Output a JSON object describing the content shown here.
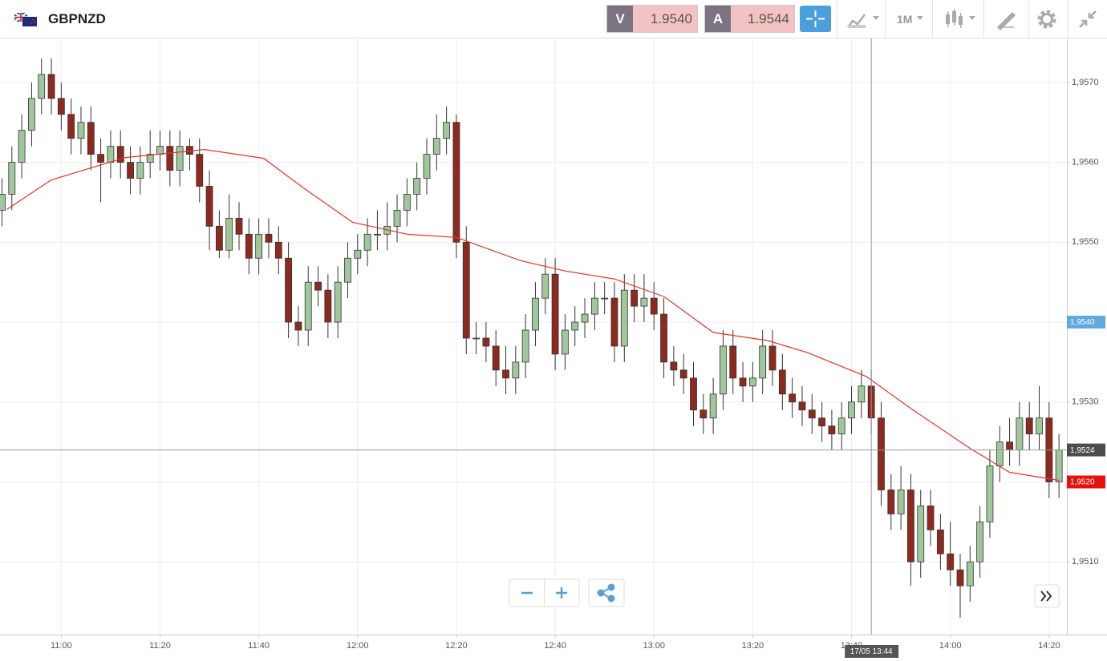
{
  "header": {
    "symbol": "GBPNZD",
    "bid_label": "V",
    "bid": "1.9540",
    "ask_label": "A",
    "ask": "1.9544",
    "timeframe": "1M"
  },
  "chart_data": {
    "type": "candlestick",
    "x": [
      648,
      650,
      652,
      654,
      656,
      658,
      660,
      662,
      664,
      666,
      668,
      670,
      672,
      674,
      676,
      678,
      680,
      682,
      684,
      686,
      688,
      690,
      692,
      694,
      696,
      698,
      700,
      702,
      704,
      706,
      708,
      710,
      712,
      714,
      716,
      718,
      720,
      722,
      724,
      726,
      728,
      730,
      732,
      734,
      736,
      738,
      740,
      742,
      744,
      746,
      748,
      750,
      752,
      754,
      756,
      758,
      760,
      762,
      764,
      766,
      768,
      770,
      772,
      774,
      776,
      778,
      780,
      782,
      784,
      786,
      788,
      790,
      792,
      794,
      796,
      798,
      800,
      802,
      804,
      806,
      808,
      810,
      812,
      814,
      816,
      818,
      820,
      822,
      824,
      826,
      828,
      830,
      832,
      834,
      836,
      838,
      840,
      842,
      844,
      846,
      848,
      850,
      852,
      854,
      856,
      858,
      860,
      862
    ],
    "open": [
      1.9554,
      1.9556,
      1.956,
      1.9564,
      1.9568,
      1.9571,
      1.9568,
      1.9566,
      1.9563,
      1.9565,
      1.9561,
      1.956,
      1.9562,
      1.956,
      1.9558,
      1.956,
      1.9561,
      1.9562,
      1.9559,
      1.9562,
      1.9561,
      1.9557,
      1.9552,
      1.9549,
      1.9553,
      1.9551,
      1.9548,
      1.9551,
      1.955,
      1.9548,
      1.954,
      1.9539,
      1.9545,
      1.9544,
      1.954,
      1.9545,
      1.9548,
      1.9549,
      1.9551,
      1.9551,
      1.9552,
      1.9554,
      1.9556,
      1.9558,
      1.9561,
      1.9563,
      1.9565,
      1.955,
      1.9538,
      1.9538,
      1.9537,
      1.9534,
      1.9533,
      1.9535,
      1.9539,
      1.9543,
      1.9546,
      1.9536,
      1.9539,
      1.954,
      1.9541,
      1.9543,
      1.9543,
      1.9537,
      1.9544,
      1.9542,
      1.9543,
      1.9541,
      1.9535,
      1.9534,
      1.9533,
      1.9529,
      1.9528,
      1.9531,
      1.9537,
      1.9533,
      1.9532,
      1.9533,
      1.9537,
      1.9534,
      1.9531,
      1.953,
      1.9529,
      1.9528,
      1.9527,
      1.9526,
      1.9528,
      1.953,
      1.9532,
      1.9528,
      1.9519,
      1.9516,
      1.9519,
      1.951,
      1.9517,
      1.9514,
      1.9511,
      1.9509,
      1.9507,
      1.951,
      1.9515,
      1.9522,
      1.9525,
      1.9524,
      1.9528,
      1.9526,
      1.9528,
      1.952
    ],
    "high": [
      1.9558,
      1.9562,
      1.9566,
      1.957,
      1.9573,
      1.9573,
      1.957,
      1.9568,
      1.9567,
      1.9567,
      1.9563,
      1.9564,
      1.9564,
      1.9562,
      1.9562,
      1.9564,
      1.9564,
      1.9564,
      1.9564,
      1.9563,
      1.9563,
      1.9559,
      1.9554,
      1.9556,
      1.9555,
      1.9553,
      1.9553,
      1.9553,
      1.9552,
      1.955,
      1.9542,
      1.9547,
      1.9547,
      1.9546,
      1.9547,
      1.955,
      1.9551,
      1.9553,
      1.9554,
      1.9555,
      1.9556,
      1.9558,
      1.956,
      1.9563,
      1.9566,
      1.9567,
      1.9566,
      1.9552,
      1.954,
      1.954,
      1.9539,
      1.9537,
      1.9537,
      1.9541,
      1.9545,
      1.9548,
      1.9548,
      1.9541,
      1.9542,
      1.9543,
      1.9545,
      1.9545,
      1.9545,
      1.9546,
      1.9546,
      1.9546,
      1.9545,
      1.9543,
      1.9537,
      1.9536,
      1.9535,
      1.9531,
      1.9533,
      1.9539,
      1.9539,
      1.9535,
      1.9535,
      1.9539,
      1.9539,
      1.9536,
      1.9533,
      1.9532,
      1.9531,
      1.953,
      1.9529,
      1.953,
      1.9532,
      1.9534,
      1.9534,
      1.953,
      1.9521,
      1.9522,
      1.9521,
      1.9519,
      1.9519,
      1.9516,
      1.9515,
      1.9511,
      1.9512,
      1.9517,
      1.9524,
      1.9527,
      1.9528,
      1.953,
      1.953,
      1.9532,
      1.953,
      1.9526
    ],
    "low": [
      1.9552,
      1.9554,
      1.9558,
      1.9562,
      1.9566,
      1.9566,
      1.9564,
      1.9561,
      1.9561,
      1.9559,
      1.9555,
      1.9558,
      1.9558,
      1.9556,
      1.9556,
      1.9558,
      1.9559,
      1.9557,
      1.9557,
      1.9559,
      1.9555,
      1.9549,
      1.9548,
      1.9548,
      1.9549,
      1.9546,
      1.9546,
      1.9548,
      1.9546,
      1.9538,
      1.9537,
      1.9537,
      1.9542,
      1.9538,
      1.9538,
      1.9543,
      1.9546,
      1.9547,
      1.9549,
      1.9549,
      1.955,
      1.9552,
      1.9554,
      1.9556,
      1.9559,
      1.9561,
      1.9548,
      1.9536,
      1.9536,
      1.9535,
      1.9532,
      1.9531,
      1.9531,
      1.9533,
      1.9537,
      1.9541,
      1.9534,
      1.9534,
      1.9537,
      1.9538,
      1.9539,
      1.9541,
      1.9535,
      1.9535,
      1.954,
      1.954,
      1.9539,
      1.9533,
      1.9532,
      1.9531,
      1.9527,
      1.9526,
      1.9526,
      1.9529,
      1.9531,
      1.953,
      1.953,
      1.9531,
      1.9532,
      1.9529,
      1.9528,
      1.9527,
      1.9526,
      1.9525,
      1.9524,
      1.9524,
      1.9526,
      1.9528,
      1.9526,
      1.9517,
      1.9514,
      1.9514,
      1.9507,
      1.9508,
      1.9512,
      1.9509,
      1.9507,
      1.9503,
      1.9505,
      1.9508,
      1.9513,
      1.952,
      1.9522,
      1.9522,
      1.9524,
      1.9524,
      1.9518,
      1.9518
    ],
    "close": [
      1.9556,
      1.956,
      1.9564,
      1.9568,
      1.9571,
      1.9568,
      1.9566,
      1.9563,
      1.9565,
      1.9561,
      1.956,
      1.9562,
      1.956,
      1.9558,
      1.956,
      1.9561,
      1.9562,
      1.9559,
      1.9562,
      1.9561,
      1.9557,
      1.9552,
      1.9549,
      1.9553,
      1.9551,
      1.9548,
      1.9551,
      1.955,
      1.9548,
      1.954,
      1.9539,
      1.9545,
      1.9544,
      1.954,
      1.9545,
      1.9548,
      1.9549,
      1.9551,
      1.9551,
      1.9552,
      1.9554,
      1.9556,
      1.9558,
      1.9561,
      1.9563,
      1.9565,
      1.955,
      1.9538,
      1.9538,
      1.9537,
      1.9534,
      1.9533,
      1.9535,
      1.9539,
      1.9543,
      1.9546,
      1.9536,
      1.9539,
      1.954,
      1.9541,
      1.9543,
      1.9543,
      1.9537,
      1.9544,
      1.9542,
      1.9543,
      1.9541,
      1.9535,
      1.9534,
      1.9533,
      1.9529,
      1.9528,
      1.9531,
      1.9537,
      1.9533,
      1.9532,
      1.9533,
      1.9537,
      1.9534,
      1.9531,
      1.953,
      1.9529,
      1.9528,
      1.9527,
      1.9526,
      1.9528,
      1.953,
      1.9532,
      1.9528,
      1.9519,
      1.9516,
      1.9519,
      1.951,
      1.9517,
      1.9514,
      1.9511,
      1.9509,
      1.9507,
      1.951,
      1.9515,
      1.9522,
      1.9525,
      1.9524,
      1.9528,
      1.9526,
      1.9528,
      1.952,
      1.9524
    ],
    "up_color": "#9fc79b",
    "down_color": "#8e2a1d",
    "ma": {
      "x": [
        649,
        658,
        673,
        689,
        701,
        709,
        719,
        730,
        740,
        753,
        762,
        772,
        782,
        792,
        803,
        811,
        823,
        832,
        844,
        852,
        862
      ],
      "values": [
        1.95541,
        1.95578,
        1.95606,
        1.95616,
        1.95605,
        1.95568,
        1.95525,
        1.9551,
        1.95506,
        1.95477,
        1.95464,
        1.95454,
        1.95432,
        1.95387,
        1.95377,
        1.95362,
        1.95332,
        1.95292,
        1.95242,
        1.95212,
        1.95202
      ],
      "color": "#e0352b"
    },
    "xlim": [
      647.6,
      863.6
    ],
    "xticks": [
      {
        "value": 660,
        "label": "11:00"
      },
      {
        "value": 680,
        "label": "11:20"
      },
      {
        "value": 700,
        "label": "11:40"
      },
      {
        "value": 720,
        "label": "12:00"
      },
      {
        "value": 740,
        "label": "12:20"
      },
      {
        "value": 760,
        "label": "12:40"
      },
      {
        "value": 780,
        "label": "13:00"
      },
      {
        "value": 800,
        "label": "13:20"
      },
      {
        "value": 820,
        "label": "13:40"
      },
      {
        "value": 840,
        "label": "14:00"
      },
      {
        "value": 860,
        "label": "14:20"
      }
    ],
    "ylim": [
      1.95009,
      1.95755
    ],
    "yticks": [
      {
        "value": 1.951,
        "label": "1,9510"
      },
      {
        "value": 1.952,
        "label": "1,9520"
      },
      {
        "value": 1.953,
        "label": "1,9530"
      },
      {
        "value": 1.954,
        "label": "1,9540"
      },
      {
        "value": 1.955,
        "label": "1,9550"
      },
      {
        "value": 1.956,
        "label": "1,9560"
      },
      {
        "value": 1.957,
        "label": "1,9570"
      }
    ],
    "grid": true,
    "markers": [
      {
        "value": 1.954,
        "label": "1,9540",
        "color": "#5ea9dd"
      },
      {
        "value": 1.952,
        "label": "1,9520",
        "color": "#e8120c"
      }
    ],
    "crosshair": {
      "x": 824,
      "x_label": "17/05 13:44",
      "y": 1.9524,
      "y_label": "1,9524"
    }
  }
}
